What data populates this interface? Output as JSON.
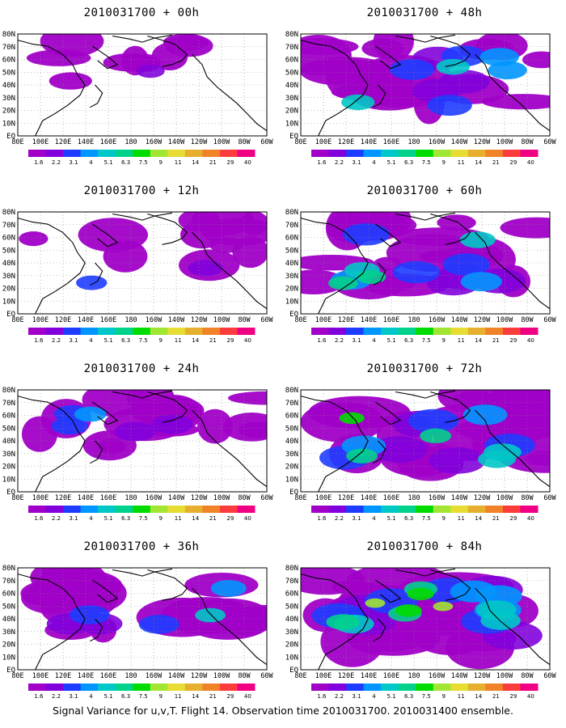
{
  "figure": {
    "panels": [
      {
        "title": "2010031700 + 00h",
        "intensity": 0.15,
        "coverage": 0.15
      },
      {
        "title": "2010031700 + 12h",
        "intensity": 0.25,
        "coverage": 0.3
      },
      {
        "title": "2010031700 + 24h",
        "intensity": 0.4,
        "coverage": 0.45
      },
      {
        "title": "2010031700 + 36h",
        "intensity": 0.5,
        "coverage": 0.55
      },
      {
        "title": "2010031700 + 48h",
        "intensity": 0.55,
        "coverage": 0.65
      },
      {
        "title": "2010031700 + 60h",
        "intensity": 0.65,
        "coverage": 0.72
      },
      {
        "title": "2010031700 + 72h",
        "intensity": 0.72,
        "coverage": 0.8
      },
      {
        "title": "2010031700 + 84h",
        "intensity": 0.85,
        "coverage": 0.88
      }
    ],
    "lat_labels": [
      "80N",
      "70N",
      "60N",
      "50N",
      "40N",
      "30N",
      "20N",
      "10N",
      "EQ"
    ],
    "lon_labels": [
      "80E",
      "100E",
      "120E",
      "140E",
      "160E",
      "180",
      "160W",
      "140W",
      "120W",
      "100W",
      "80W",
      "60W"
    ],
    "colorbar": {
      "labels": [
        "1.6",
        "2.2",
        "3.1",
        "4",
        "5.1",
        "6.3",
        "7.5",
        "9",
        "11",
        "14",
        "21",
        "29",
        "40"
      ],
      "colors": [
        "#a000c8",
        "#8200dc",
        "#1e3cff",
        "#0096ff",
        "#00c8c8",
        "#00d28c",
        "#00dc00",
        "#a0e632",
        "#e6dc32",
        "#e6af2d",
        "#f08228",
        "#fa3c3c",
        "#f00082"
      ]
    },
    "footer": "Signal Variance for u,v,T. Flight 14. Observation time 2010031700. 2010031400 ensemble."
  }
}
